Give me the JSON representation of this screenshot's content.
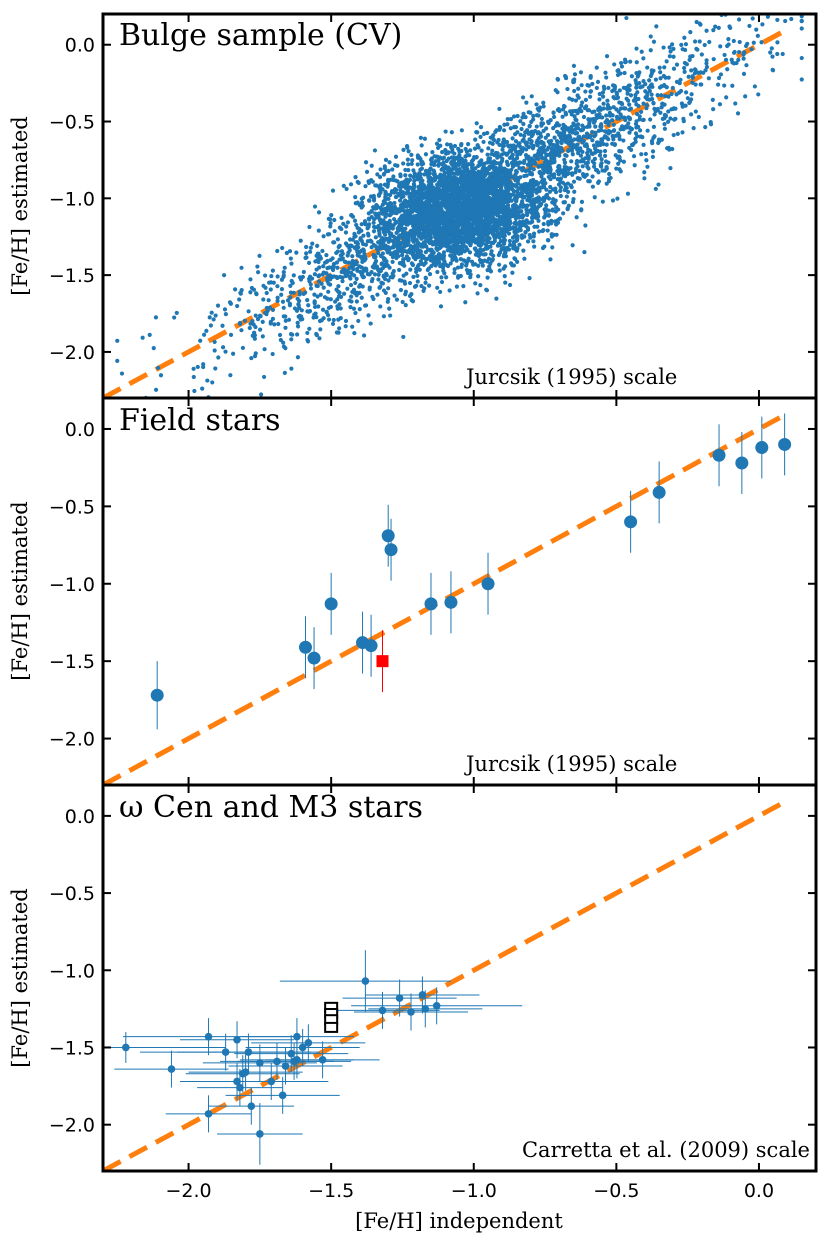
{
  "chart_data": [
    {
      "type": "scatter",
      "title": "Bulge sample (CV)",
      "annotation": "Jurcsik (1995) scale",
      "xlabel": "",
      "ylabel": "[Fe/H] estimated",
      "xlim": [
        -2.3,
        0.2
      ],
      "ylim": [
        -2.3,
        0.2
      ],
      "x_ticks": [
        -2.0,
        -1.5,
        -1.0,
        -0.5,
        0.0
      ],
      "y_ticks": [
        -2.0,
        -1.5,
        -1.0,
        -0.5,
        0.0
      ],
      "y_tick_labels": [
        "−2.0",
        "−1.5",
        "−1.0",
        "−0.5",
        "0.0"
      ],
      "reference_line": {
        "x": [
          -2.3,
          0.1
        ],
        "y": [
          -2.3,
          0.1
        ]
      },
      "point_color": "#1f77b4",
      "line_color": "#ff7f0e",
      "scatter_generator": {
        "n_points": 5200,
        "core": {
          "n_points": 2400,
          "center": [
            -1.05,
            -1.08
          ],
          "sd": 0.14
        },
        "broad": {
          "n_points": 2800,
          "x_mean": -0.95,
          "x_sd": 0.42,
          "x_range": [
            -2.25,
            0.15
          ],
          "scatter_sd": 0.2
        },
        "seed": 42
      }
    },
    {
      "type": "scatter",
      "title": "Field stars",
      "annotation": "Jurcsik (1995) scale",
      "xlabel": "",
      "ylabel": "[Fe/H] estimated",
      "xlim": [
        -2.3,
        0.2
      ],
      "ylim": [
        -2.3,
        0.2
      ],
      "x_ticks": [
        -2.0,
        -1.5,
        -1.0,
        -0.5,
        0.0
      ],
      "y_ticks": [
        -2.0,
        -1.5,
        -1.0,
        -0.5,
        0.0
      ],
      "y_tick_labels": [
        "−2.0",
        "−1.5",
        "−1.0",
        "−0.5",
        "0.0"
      ],
      "reference_line": {
        "x": [
          -2.3,
          0.1
        ],
        "y": [
          -2.3,
          0.1
        ]
      },
      "point_color": "#1f77b4",
      "line_color": "#ff7f0e",
      "points": [
        {
          "x": -2.11,
          "y": -1.72,
          "yerr": 0.22
        },
        {
          "x": -1.59,
          "y": -1.41,
          "yerr": 0.2
        },
        {
          "x": -1.56,
          "y": -1.48,
          "yerr": 0.2
        },
        {
          "x": -1.5,
          "y": -1.13,
          "yerr": 0.2
        },
        {
          "x": -1.39,
          "y": -1.38,
          "yerr": 0.2
        },
        {
          "x": -1.36,
          "y": -1.4,
          "yerr": 0.2
        },
        {
          "x": -1.3,
          "y": -0.69,
          "yerr": 0.2
        },
        {
          "x": -1.29,
          "y": -0.78,
          "yerr": 0.2
        },
        {
          "x": -1.15,
          "y": -1.13,
          "yerr": 0.2
        },
        {
          "x": -1.08,
          "y": -1.12,
          "yerr": 0.2
        },
        {
          "x": -0.95,
          "y": -1.0,
          "yerr": 0.2
        },
        {
          "x": -0.45,
          "y": -0.6,
          "yerr": 0.2
        },
        {
          "x": -0.35,
          "y": -0.41,
          "yerr": 0.2
        },
        {
          "x": -0.14,
          "y": -0.17,
          "yerr": 0.2
        },
        {
          "x": -0.06,
          "y": -0.22,
          "yerr": 0.2
        },
        {
          "x": 0.01,
          "y": -0.12,
          "yerr": 0.2
        },
        {
          "x": 0.09,
          "y": -0.1,
          "yerr": 0.2
        }
      ],
      "highlight_point": {
        "x": -1.32,
        "y": -1.5,
        "yerr": 0.2,
        "color": "#ff0000",
        "marker": "square"
      }
    },
    {
      "type": "scatter",
      "title": "ω Cen and M3 stars",
      "annotation": "Carretta et al. (2009) scale",
      "xlabel": "[Fe/H] independent",
      "ylabel": "[Fe/H] estimated",
      "xlim": [
        -2.3,
        0.2
      ],
      "ylim": [
        -2.3,
        0.2
      ],
      "x_ticks": [
        -2.0,
        -1.5,
        -1.0,
        -0.5,
        0.0
      ],
      "x_tick_labels": [
        "−2.0",
        "−1.5",
        "−1.0",
        "−0.5",
        "0.0"
      ],
      "y_ticks": [
        -2.0,
        -1.5,
        -1.0,
        -0.5,
        0.0
      ],
      "y_tick_labels": [
        "−2.0",
        "−1.5",
        "−1.0",
        "−0.5",
        "0.0"
      ],
      "reference_line": {
        "x": [
          -2.3,
          0.1
        ],
        "y": [
          -2.3,
          0.1
        ]
      },
      "point_color": "#1f77b4",
      "line_color": "#ff7f0e",
      "points": [
        {
          "x": -2.22,
          "y": -1.5,
          "xerr": 0.35,
          "yerr": 0.1
        },
        {
          "x": -2.06,
          "y": -1.64,
          "xerr": 0.2,
          "yerr": 0.12
        },
        {
          "x": -1.93,
          "y": -1.43,
          "xerr": 0.3,
          "yerr": 0.12
        },
        {
          "x": -1.93,
          "y": -1.93,
          "xerr": 0.15,
          "yerr": 0.12
        },
        {
          "x": -1.87,
          "y": -1.53,
          "xerr": 0.3,
          "yerr": 0.12
        },
        {
          "x": -1.83,
          "y": -1.45,
          "xerr": 0.2,
          "yerr": 0.12
        },
        {
          "x": -1.83,
          "y": -1.72,
          "xerr": 0.2,
          "yerr": 0.12
        },
        {
          "x": -1.82,
          "y": -1.76,
          "xerr": 0.15,
          "yerr": 0.12
        },
        {
          "x": -1.81,
          "y": -1.67,
          "xerr": 0.2,
          "yerr": 0.12
        },
        {
          "x": -1.8,
          "y": -1.66,
          "xerr": 0.2,
          "yerr": 0.12
        },
        {
          "x": -1.79,
          "y": -1.53,
          "xerr": 0.25,
          "yerr": 0.12
        },
        {
          "x": -1.78,
          "y": -1.88,
          "xerr": 0.15,
          "yerr": 0.12
        },
        {
          "x": -1.75,
          "y": -2.06,
          "xerr": 0.15,
          "yerr": 0.2
        },
        {
          "x": -1.75,
          "y": -1.6,
          "xerr": 0.2,
          "yerr": 0.12
        },
        {
          "x": -1.71,
          "y": -1.72,
          "xerr": 0.2,
          "yerr": 0.12
        },
        {
          "x": -1.69,
          "y": -1.59,
          "xerr": 0.2,
          "yerr": 0.12
        },
        {
          "x": -1.67,
          "y": -1.81,
          "xerr": 0.2,
          "yerr": 0.12
        },
        {
          "x": -1.66,
          "y": -1.62,
          "xerr": 0.2,
          "yerr": 0.12
        },
        {
          "x": -1.64,
          "y": -1.54,
          "xerr": 0.2,
          "yerr": 0.12
        },
        {
          "x": -1.63,
          "y": -1.59,
          "xerr": 0.2,
          "yerr": 0.12
        },
        {
          "x": -1.62,
          "y": -1.43,
          "xerr": 0.2,
          "yerr": 0.12
        },
        {
          "x": -1.62,
          "y": -1.58,
          "xerr": 0.2,
          "yerr": 0.12
        },
        {
          "x": -1.6,
          "y": -1.5,
          "xerr": 0.2,
          "yerr": 0.12
        },
        {
          "x": -1.58,
          "y": -1.47,
          "xerr": 0.2,
          "yerr": 0.12
        },
        {
          "x": -1.53,
          "y": -1.58,
          "xerr": 0.2,
          "yerr": 0.12
        },
        {
          "x": -1.38,
          "y": -1.07,
          "xerr": 0.3,
          "yerr": 0.2
        },
        {
          "x": -1.32,
          "y": -1.26,
          "xerr": 0.2,
          "yerr": 0.12
        },
        {
          "x": -1.26,
          "y": -1.18,
          "xerr": 0.2,
          "yerr": 0.12
        },
        {
          "x": -1.22,
          "y": -1.27,
          "xerr": 0.2,
          "yerr": 0.12
        },
        {
          "x": -1.18,
          "y": -1.16,
          "xerr": 0.2,
          "yerr": 0.12
        },
        {
          "x": -1.17,
          "y": -1.25,
          "xerr": 0.2,
          "yerr": 0.12
        },
        {
          "x": -1.13,
          "y": -1.23,
          "xerr": 0.3,
          "yerr": 0.12
        }
      ],
      "highlight_points": [
        {
          "x": -1.5,
          "y": -1.24,
          "marker": "open-square"
        },
        {
          "x": -1.5,
          "y": -1.28,
          "marker": "open-square"
        },
        {
          "x": -1.5,
          "y": -1.32,
          "marker": "open-square"
        },
        {
          "x": -1.5,
          "y": -1.37,
          "marker": "open-square"
        }
      ]
    }
  ]
}
